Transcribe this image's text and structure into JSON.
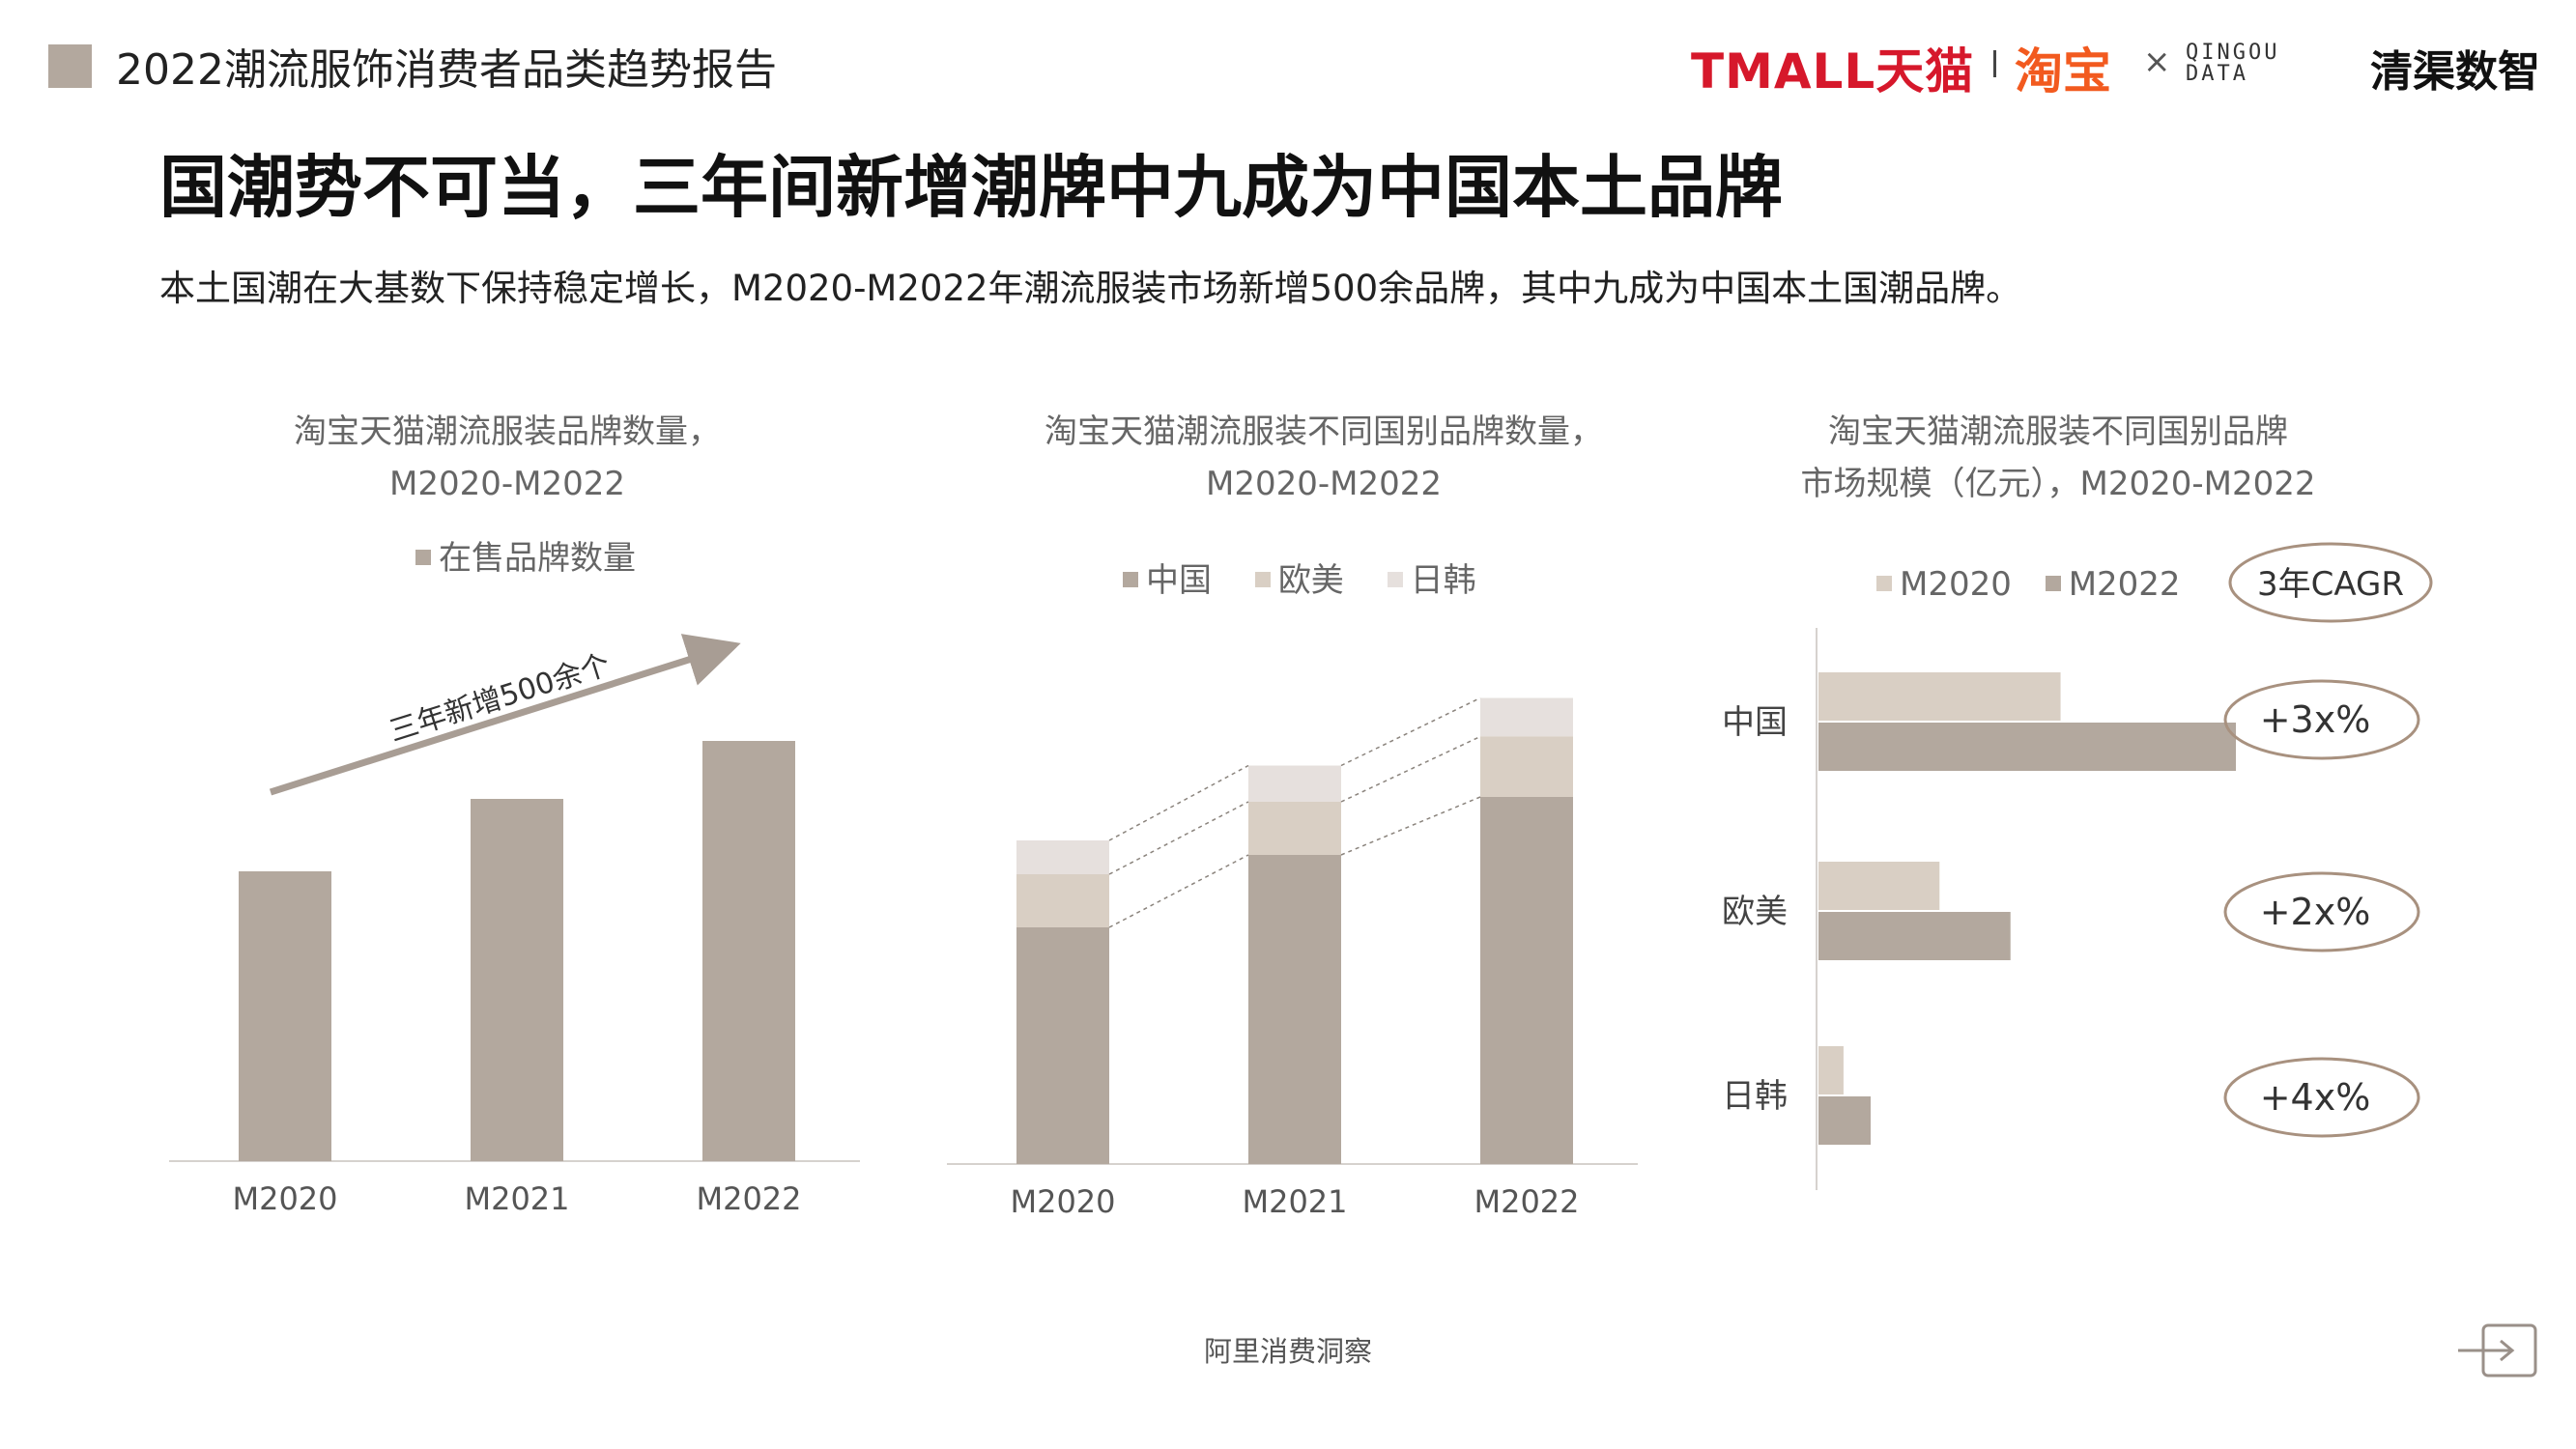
{
  "header": {
    "report_title": "2022潮流服饰消费者品类趋势报告",
    "logos": {
      "tmall": "TMALL天猫",
      "taobao": "淘宝",
      "times": "×",
      "qingdou_line1": "QINGOU",
      "qingdou_line2": "DATA",
      "qingqu": "清渠数智"
    }
  },
  "title": "国潮势不可当，三年间新增潮牌中九成为中国本土品牌",
  "subtitle": "本土国潮在大基数下保持稳定增长，M2020-M2022年潮流服装市场新增500余品牌，其中九成为中国本土国潮品牌。",
  "colors": {
    "china": "#b3a89e",
    "west": "#d9cfc4",
    "jpkr": "#e6e0dd",
    "m2022": "#b3a89e",
    "m2020": "#d9cfc4",
    "arrow": "#a89d94",
    "ellipse": "#a8917f"
  },
  "chart_data": [
    {
      "type": "bar",
      "title_line1": "淘宝天猫潮流服装品牌数量，",
      "title_line2": "M2020-M2022",
      "legend": "在售品牌数量",
      "categories": [
        "M2020",
        "M2021",
        "M2022"
      ],
      "series": [
        {
          "name": "在售品牌数量",
          "values": [
            60,
            75,
            87
          ]
        }
      ],
      "ylim": [
        0,
        100
      ],
      "annotation": "三年新增500余个"
    },
    {
      "type": "bar",
      "stacked": true,
      "title_line1": "淘宝天猫潮流服装不同国别品牌数量，",
      "title_line2": "M2020-M2022",
      "categories": [
        "M2020",
        "M2021",
        "M2022"
      ],
      "series": [
        {
          "name": "中国",
          "values": [
            49,
            64,
            76
          ]
        },
        {
          "name": "欧美",
          "values": [
            11,
            11,
            12.5
          ]
        },
        {
          "name": "日韩",
          "values": [
            7,
            7.5,
            8
          ]
        }
      ],
      "ylim": [
        0,
        100
      ]
    },
    {
      "type": "bar",
      "orientation": "horizontal",
      "title_line1": "淘宝天猫潮流服装不同国别品牌",
      "title_line2": "市场规模（亿元），M2020-M2022",
      "categories": [
        "中国",
        "欧美",
        "日韩"
      ],
      "series": [
        {
          "name": "M2020",
          "values": [
            58,
            29,
            6
          ]
        },
        {
          "name": "M2022",
          "values": [
            100,
            46,
            12.5
          ]
        }
      ],
      "xlim": [
        0,
        100
      ],
      "cagr_label": "3年CAGR",
      "cagr": [
        "+3x%",
        "+2x%",
        "+4x%"
      ]
    }
  ],
  "footer": "阿里消费洞察"
}
